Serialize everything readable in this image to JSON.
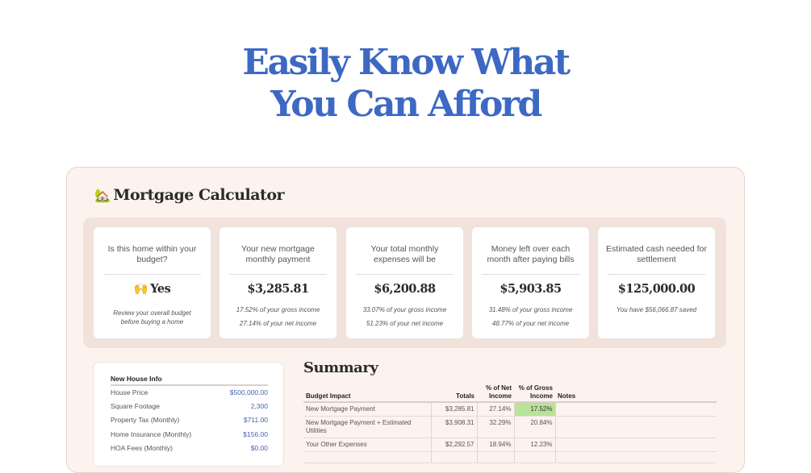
{
  "headline": {
    "line1": "Easily Know What",
    "line2": "You Can Afford"
  },
  "panel_title": {
    "emoji": "🏡",
    "text": "Mortgage Calculator"
  },
  "cards": [
    {
      "title": "Is this home within your budget?",
      "emoji": "🙌",
      "value": "Yes",
      "sub1": "Review your overall budget before buying a home",
      "sub2": ""
    },
    {
      "title": "Your new mortgage monthly payment",
      "value": "$3,285.81",
      "sub1": "17.52% of your gross income",
      "sub2": "27.14% of your net income"
    },
    {
      "title": "Your total monthly expenses will be",
      "value": "$6,200.88",
      "sub1": "33.07% of your gross income",
      "sub2": "51.23% of your net income"
    },
    {
      "title": "Money left over each month after paying bills",
      "value": "$5,903.85",
      "sub1": "31.48% of your gross income",
      "sub2": "48.77% of your net income"
    },
    {
      "title": "Estimated cash needed for settlement",
      "value": "$125,000.00",
      "sub1": "You have $56,066.87 saved",
      "sub2": ""
    }
  ],
  "house_info": {
    "header": "New House Info",
    "rows": [
      {
        "label": "House Price",
        "value": "$500,000.00"
      },
      {
        "label": "Square Footage",
        "value": "2,300"
      },
      {
        "label": "Property Tax (Monthly)",
        "value": "$711.00"
      },
      {
        "label": "Home Insurance (Monthly)",
        "value": "$156.00"
      },
      {
        "label": "HOA Fees (Monthly)",
        "value": "$0.00"
      }
    ]
  },
  "summary": {
    "title": "Summary",
    "columns": [
      "Budget Impact",
      "Totals",
      "% of Net Income",
      "% of Gross Income",
      "Notes"
    ],
    "rows": [
      {
        "impact": "New Mortgage Payment",
        "total": "$3,285.81",
        "net": "27.14%",
        "gross": "17.52%",
        "notes": ""
      },
      {
        "impact": "New Mortgage Payment + Estimated Utilities",
        "total": "$3,908.31",
        "net": "32.29%",
        "gross": "20.84%",
        "notes": ""
      },
      {
        "impact": "Your Other Expenses",
        "total": "$2,292.57",
        "net": "18.94%",
        "gross": "12.23%",
        "notes": ""
      }
    ],
    "highlight_color": "#b8e398"
  },
  "colors": {
    "headline": "#3d68c4",
    "panel_bg": "#fdf3ee",
    "cards_bg": "#f2e2dc",
    "value_blue": "#4a63b0"
  }
}
